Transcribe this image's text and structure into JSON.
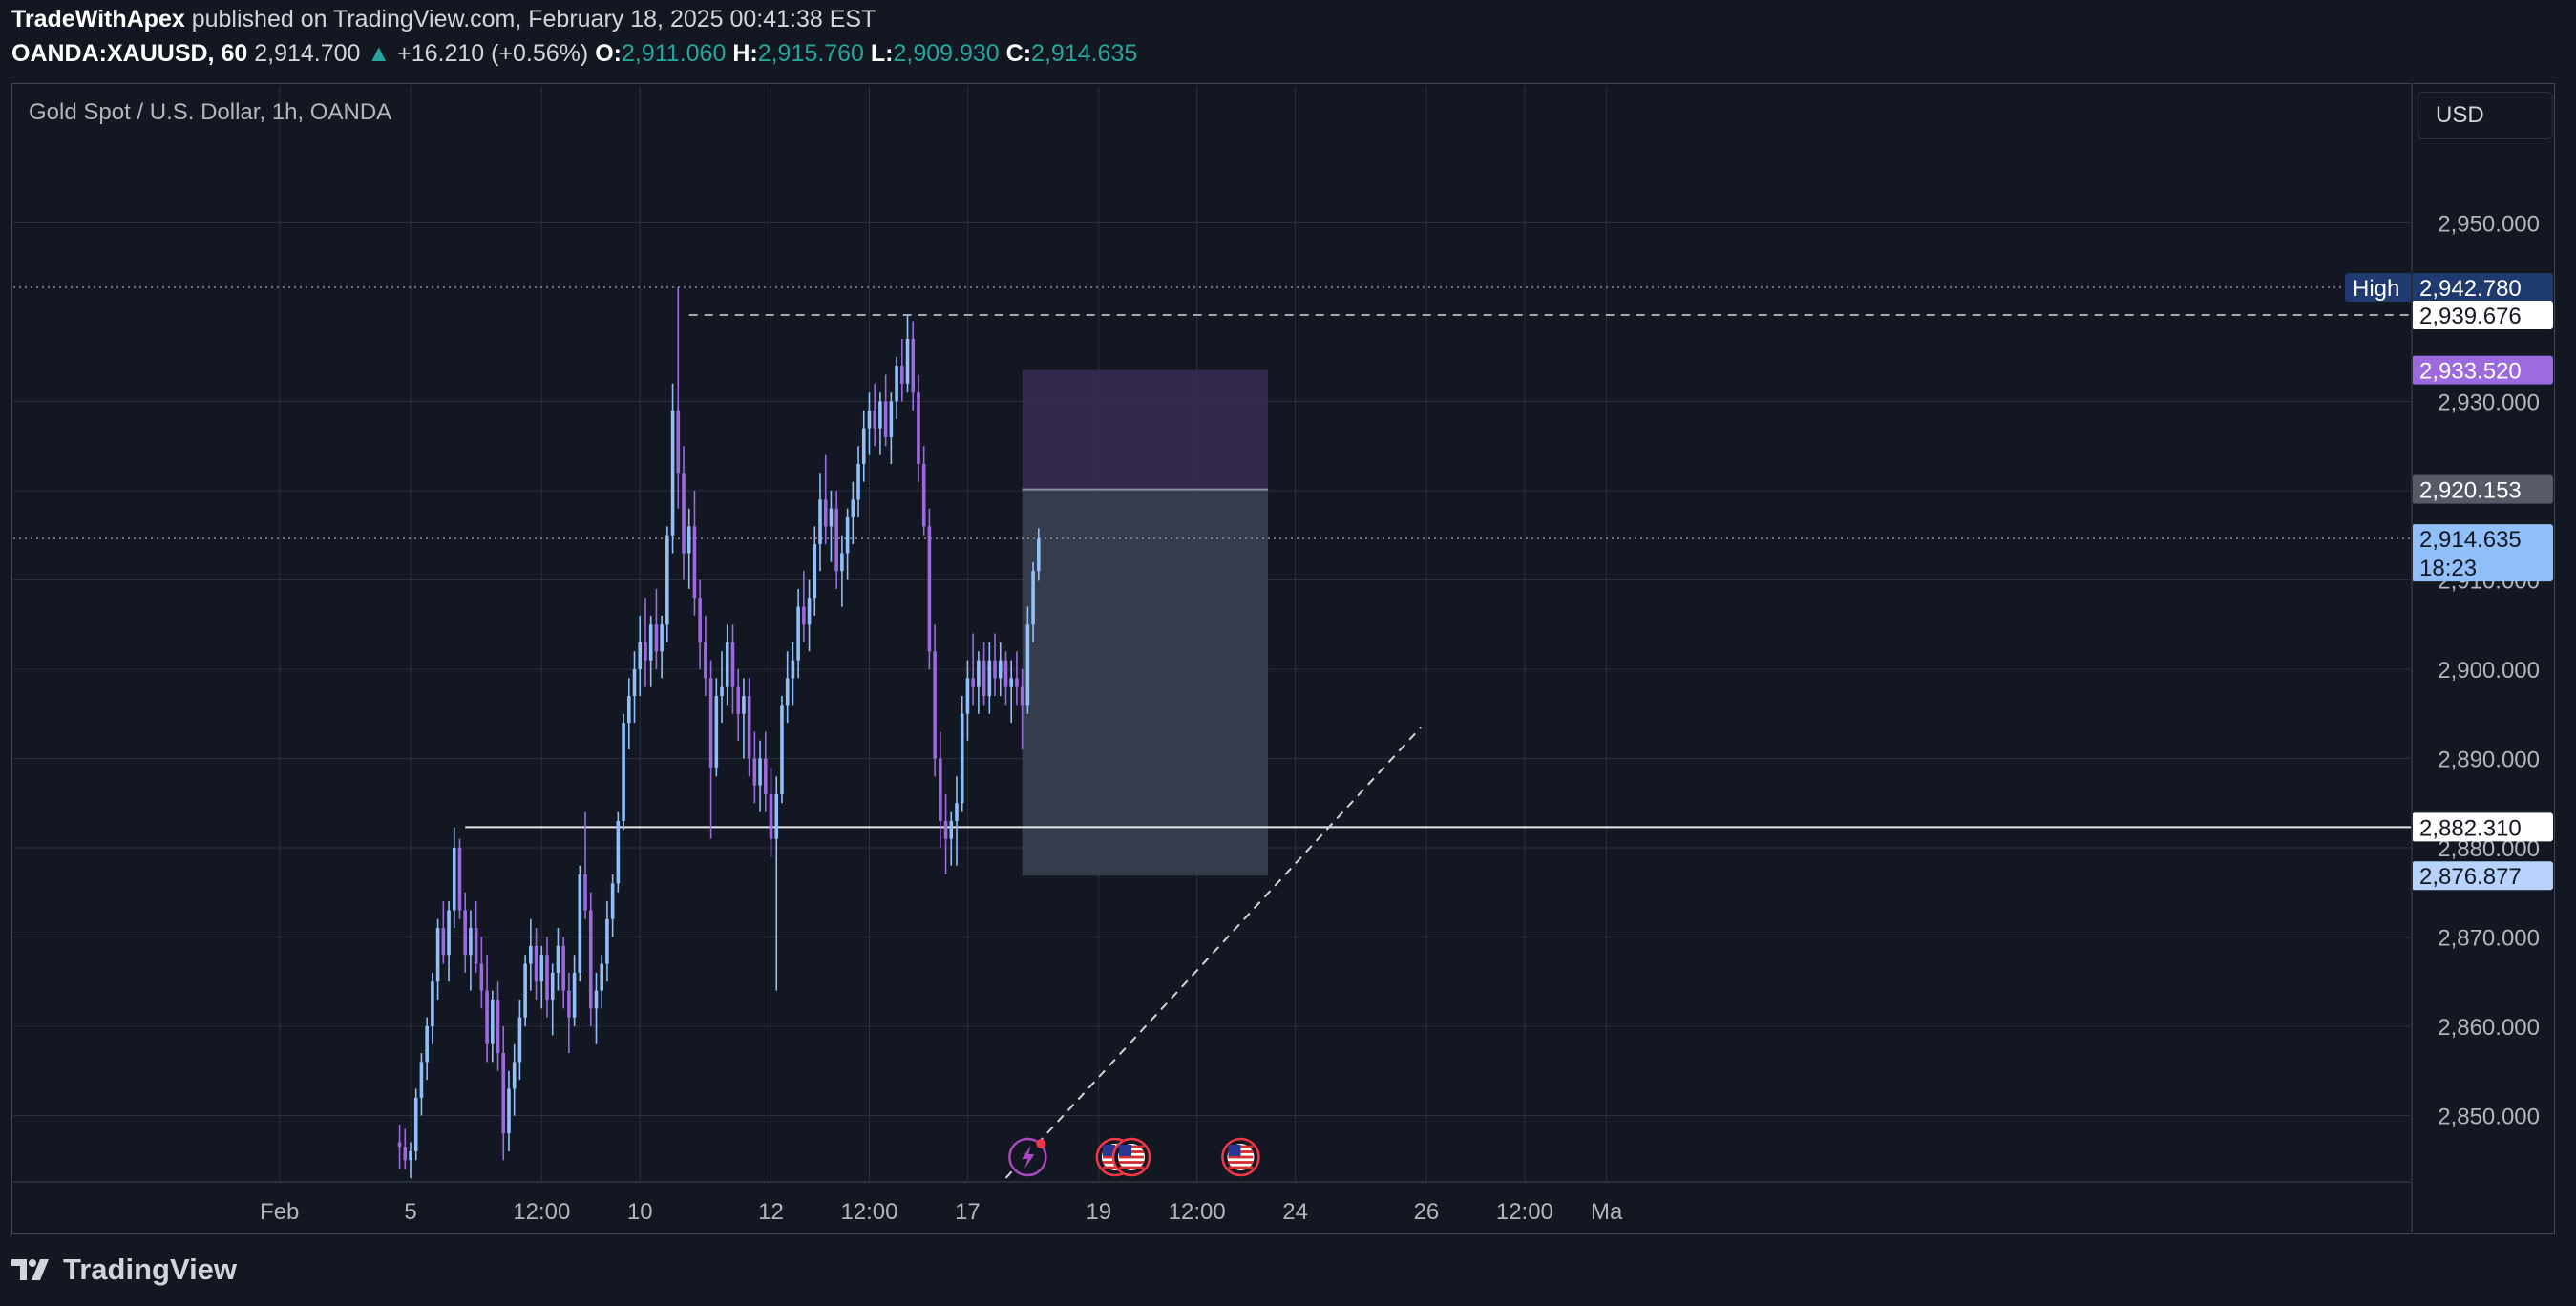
{
  "header": {
    "author": "TradeWithApex",
    "published": "published on TradingView.com, February 18, 2025 00:41:38 EST",
    "symbol": "OANDA:XAUUSD, 60",
    "last": "2,914.700",
    "change_arrow": "▲",
    "change": "+16.210 (+0.56%)",
    "open_label": "O:",
    "open": "2,911.060",
    "high_label": "H:",
    "high": "2,915.760",
    "low_label": "L:",
    "low": "2,909.930",
    "close_label": "C:",
    "close": "2,914.635"
  },
  "legend": "Gold Spot / U.S. Dollar, 1h, OANDA",
  "currency_button": "USD",
  "footer": {
    "brand": "TradingView",
    "logo_icon": "tradingview-logo-icon"
  },
  "colors": {
    "background": "#131722",
    "bull": "#90bff9",
    "bear": "#9c6ade",
    "grid": "#2a2e39",
    "high_label_bg": "#1e3a6e",
    "stop_zone": "#3b2c55",
    "target_zone": "#3c4454",
    "current_price_bg": "#90bff9",
    "entry_label_bg": "#555a66",
    "stop_label_bg": "#9c6ade"
  },
  "chart_data": {
    "type": "candlestick",
    "title": "Gold Spot / U.S. Dollar, 1h, OANDA",
    "ylim": [
      2843,
      2962
    ],
    "y_ticks": [
      {
        "value": 2850,
        "label": "2,850.000"
      },
      {
        "value": 2860,
        "label": "2,860.000"
      },
      {
        "value": 2870,
        "label": "2,870.000"
      },
      {
        "value": 2880,
        "label": "2,880.000"
      },
      {
        "value": 2890,
        "label": "2,890.000"
      },
      {
        "value": 2900,
        "label": "2,900.000"
      },
      {
        "value": 2910,
        "label": "2,910.000"
      },
      {
        "value": 2920,
        "label": "2,920.000"
      },
      {
        "value": 2930,
        "label": "2,930.000"
      },
      {
        "value": 2950,
        "label": "2,950.000"
      }
    ],
    "x_ticks": [
      {
        "bar": -24,
        "label": "Feb"
      },
      {
        "bar": 0,
        "label": "5"
      },
      {
        "bar": 24,
        "label": "12:00"
      },
      {
        "bar": 42,
        "label": "10"
      },
      {
        "bar": 66,
        "label": "12"
      },
      {
        "bar": 84,
        "label": "12:00"
      },
      {
        "bar": 102,
        "label": "17"
      },
      {
        "bar": 126,
        "label": "19"
      },
      {
        "bar": 144,
        "label": "12:00"
      },
      {
        "bar": 162,
        "label": "24"
      },
      {
        "bar": 186,
        "label": "26"
      },
      {
        "bar": 204,
        "label": "12:00"
      },
      {
        "bar": 219,
        "label": "Ma"
      }
    ],
    "candles": [
      [
        2847.0,
        2849.0,
        2844.0,
        2846.5
      ],
      [
        2846.5,
        2848.5,
        2844.0,
        2845.0
      ],
      [
        2845.0,
        2847.0,
        2843.0,
        2846.0
      ],
      [
        2846.0,
        2853.0,
        2845.0,
        2852.0
      ],
      [
        2852.0,
        2857.0,
        2850.0,
        2856.0
      ],
      [
        2856.0,
        2861.0,
        2854.0,
        2860.0
      ],
      [
        2860.0,
        2866.0,
        2858.0,
        2865.0
      ],
      [
        2865.0,
        2872.0,
        2863.0,
        2871.0
      ],
      [
        2871.0,
        2874.0,
        2867.0,
        2868.0
      ],
      [
        2868.0,
        2874.0,
        2865.0,
        2873.0
      ],
      [
        2873.0,
        2882.3,
        2871.0,
        2880.0
      ],
      [
        2880.0,
        2881.0,
        2872.0,
        2873.0
      ],
      [
        2873.0,
        2875.0,
        2866.0,
        2868.0
      ],
      [
        2868.0,
        2873.0,
        2864.0,
        2871.0
      ],
      [
        2871.0,
        2874.0,
        2866.0,
        2867.0
      ],
      [
        2867.0,
        2870.0,
        2862.0,
        2864.0
      ],
      [
        2864.0,
        2868.0,
        2856.0,
        2858.0
      ],
      [
        2858.0,
        2864.0,
        2856.0,
        2863.0
      ],
      [
        2863.0,
        2865.0,
        2855.0,
        2857.0
      ],
      [
        2857.0,
        2860.0,
        2845.0,
        2848.0
      ],
      [
        2848.0,
        2855.0,
        2846.0,
        2853.0
      ],
      [
        2853.0,
        2858.0,
        2850.0,
        2856.0
      ],
      [
        2856.0,
        2863.0,
        2854.0,
        2861.0
      ],
      [
        2861.0,
        2868.0,
        2860.0,
        2867.0
      ],
      [
        2867.0,
        2872.0,
        2864.0,
        2869.0
      ],
      [
        2869.0,
        2871.0,
        2863.0,
        2865.0
      ],
      [
        2865.0,
        2869.0,
        2862.0,
        2868.0
      ],
      [
        2868.0,
        2870.0,
        2861.0,
        2863.0
      ],
      [
        2863.0,
        2867.0,
        2859.0,
        2866.0
      ],
      [
        2866.0,
        2871.0,
        2864.0,
        2869.0
      ],
      [
        2869.0,
        2870.0,
        2862.0,
        2864.0
      ],
      [
        2864.0,
        2866.0,
        2857.0,
        2861.0
      ],
      [
        2861.0,
        2868.0,
        2860.0,
        2866.0
      ],
      [
        2866.0,
        2878.0,
        2865.0,
        2877.0
      ],
      [
        2877.0,
        2884.0,
        2872.0,
        2873.0
      ],
      [
        2873.0,
        2875.0,
        2860.0,
        2862.0
      ],
      [
        2862.0,
        2866.0,
        2858.0,
        2864.0
      ],
      [
        2864.0,
        2868.0,
        2862.0,
        2867.0
      ],
      [
        2867.0,
        2874.0,
        2865.0,
        2872.0
      ],
      [
        2872.0,
        2877.0,
        2870.0,
        2876.0
      ],
      [
        2876.0,
        2884.0,
        2875.0,
        2883.0
      ],
      [
        2883.0,
        2895.0,
        2882.0,
        2894.0
      ],
      [
        2894.0,
        2899.0,
        2891.0,
        2897.0
      ],
      [
        2897.0,
        2902.0,
        2894.0,
        2900.0
      ],
      [
        2900.0,
        2906.0,
        2897.0,
        2903.0
      ],
      [
        2903.0,
        2908.0,
        2898.0,
        2901.0
      ],
      [
        2901.0,
        2906.0,
        2898.0,
        2905.0
      ],
      [
        2905.0,
        2909.0,
        2900.0,
        2902.0
      ],
      [
        2902.0,
        2906.0,
        2899.0,
        2905.0
      ],
      [
        2905.0,
        2916.0,
        2903.0,
        2915.0
      ],
      [
        2915.0,
        2932.0,
        2913.0,
        2929.0
      ],
      [
        2929.0,
        2942.8,
        2918.0,
        2922.0
      ],
      [
        2922.0,
        2925.0,
        2910.0,
        2913.0
      ],
      [
        2913.0,
        2918.0,
        2909.0,
        2916.0
      ],
      [
        2916.0,
        2920.0,
        2906.0,
        2908.0
      ],
      [
        2908.0,
        2910.0,
        2900.0,
        2903.0
      ],
      [
        2903.0,
        2906.0,
        2897.0,
        2899.0
      ],
      [
        2899.0,
        2901.0,
        2881.0,
        2889.0
      ],
      [
        2889.0,
        2899.0,
        2888.0,
        2897.0
      ],
      [
        2897.0,
        2902.0,
        2894.0,
        2898.0
      ],
      [
        2898.0,
        2905.0,
        2896.0,
        2903.0
      ],
      [
        2903.0,
        2905.0,
        2895.0,
        2898.0
      ],
      [
        2898.0,
        2900.0,
        2892.0,
        2895.0
      ],
      [
        2895.0,
        2899.0,
        2890.0,
        2897.0
      ],
      [
        2897.0,
        2899.0,
        2888.0,
        2890.0
      ],
      [
        2890.0,
        2893.0,
        2885.0,
        2887.0
      ],
      [
        2887.0,
        2892.0,
        2884.0,
        2890.0
      ],
      [
        2890.0,
        2893.0,
        2884.0,
        2886.0
      ],
      [
        2886.0,
        2889.0,
        2879.0,
        2881.0
      ],
      [
        2881.0,
        2888.0,
        2864.0,
        2886.0
      ],
      [
        2886.0,
        2897.0,
        2885.0,
        2896.0
      ],
      [
        2896.0,
        2902.0,
        2894.0,
        2899.0
      ],
      [
        2899.0,
        2903.0,
        2896.0,
        2901.0
      ],
      [
        2901.0,
        2909.0,
        2899.0,
        2907.0
      ],
      [
        2907.0,
        2911.0,
        2903.0,
        2905.0
      ],
      [
        2905.0,
        2910.0,
        2902.0,
        2908.0
      ],
      [
        2908.0,
        2916.0,
        2906.0,
        2914.0
      ],
      [
        2914.0,
        2922.0,
        2911.0,
        2919.0
      ],
      [
        2919.0,
        2924.0,
        2914.0,
        2916.0
      ],
      [
        2916.0,
        2920.0,
        2912.0,
        2918.0
      ],
      [
        2918.0,
        2920.0,
        2909.0,
        2911.0
      ],
      [
        2911.0,
        2915.0,
        2907.0,
        2913.0
      ],
      [
        2913.0,
        2918.0,
        2910.0,
        2917.0
      ],
      [
        2917.0,
        2921.0,
        2914.0,
        2919.0
      ],
      [
        2919.0,
        2925.0,
        2917.0,
        2923.0
      ],
      [
        2923.0,
        2929.0,
        2921.0,
        2927.0
      ],
      [
        2927.0,
        2931.0,
        2924.0,
        2929.0
      ],
      [
        2929.0,
        2932.0,
        2925.0,
        2927.0
      ],
      [
        2927.0,
        2931.0,
        2924.0,
        2930.0
      ],
      [
        2930.0,
        2933.0,
        2925.0,
        2926.0
      ],
      [
        2926.0,
        2931.0,
        2923.0,
        2930.0
      ],
      [
        2930.0,
        2935.0,
        2928.0,
        2934.0
      ],
      [
        2934.0,
        2937.0,
        2930.0,
        2932.0
      ],
      [
        2932.0,
        2939.7,
        2931.0,
        2937.0
      ],
      [
        2937.0,
        2939.0,
        2929.0,
        2931.0
      ],
      [
        2931.0,
        2933.0,
        2921.0,
        2923.0
      ],
      [
        2923.0,
        2925.0,
        2915.0,
        2916.0
      ],
      [
        2916.0,
        2918.0,
        2900.0,
        2902.0
      ],
      [
        2902.0,
        2905.0,
        2888.0,
        2890.0
      ],
      [
        2890.0,
        2893.0,
        2880.0,
        2883.0
      ],
      [
        2883.0,
        2886.0,
        2877.0,
        2881.0
      ],
      [
        2881.0,
        2884.0,
        2878.0,
        2883.0
      ],
      [
        2883.0,
        2888.0,
        2878.0,
        2885.0
      ],
      [
        2885.0,
        2897.0,
        2884.0,
        2895.0
      ],
      [
        2895.0,
        2901.0,
        2892.0,
        2899.0
      ],
      [
        2899.0,
        2904.0,
        2896.0,
        2898.0
      ],
      [
        2898.0,
        2902.0,
        2895.0,
        2901.0
      ],
      [
        2901.0,
        2903.0,
        2896.0,
        2897.0
      ],
      [
        2897.0,
        2903.0,
        2895.0,
        2901.0
      ],
      [
        2901.0,
        2904.0,
        2897.0,
        2899.0
      ],
      [
        2899.0,
        2903.0,
        2897.0,
        2901.0
      ],
      [
        2901.0,
        2902.0,
        2896.0,
        2898.0
      ],
      [
        2898.0,
        2901.0,
        2894.0,
        2899.0
      ],
      [
        2899.0,
        2902.0,
        2896.0,
        2898.0
      ],
      [
        2898.0,
        2900.0,
        2891.0,
        2896.0
      ],
      [
        2896.0,
        2907.0,
        2895.0,
        2905.0
      ],
      [
        2905.0,
        2912.0,
        2903.0,
        2911.0
      ],
      [
        2911.0,
        2915.8,
        2909.9,
        2914.6
      ]
    ],
    "first_bar": -2,
    "price_labels": [
      {
        "name": "high-label",
        "tag": "High",
        "value": 2942.78,
        "label": "2,942.780"
      },
      {
        "name": "dashed-high-level-label",
        "value": 2939.676,
        "label": "2,939.676"
      },
      {
        "name": "stop-price-label",
        "value": 2933.52,
        "label": "2,933.520"
      },
      {
        "name": "entry-price-label",
        "value": 2920.153,
        "label": "2,920.153"
      },
      {
        "name": "current-price-label",
        "value": 2914.635,
        "label": "2,914.635",
        "sub": "18:23"
      },
      {
        "name": "support-level-label",
        "value": 2882.31,
        "label": "2,882.310"
      },
      {
        "name": "target-price-label",
        "value": 2876.877,
        "label": "2,876.877"
      }
    ],
    "levels": {
      "high_dotted": 2942.78,
      "current_dotted": 2914.635,
      "dashed_resistance": 2939.676,
      "support": 2882.31
    },
    "position": {
      "type": "short",
      "stop": 2933.52,
      "entry": 2920.153,
      "target": 2876.877,
      "start_bar": 112,
      "end_bar": 157
    },
    "trendline": {
      "start": [
        109,
        2843
      ],
      "end": [
        185,
        2893.5
      ]
    },
    "support_start_bar": 10,
    "resistance_start_bar": 51,
    "events": [
      {
        "bar": 113,
        "type": "flash",
        "icon": "lightning-icon"
      },
      {
        "bar": 129,
        "type": "us-economic-event",
        "icon": "us-flag-icon"
      },
      {
        "bar": 132,
        "type": "us-economic-event",
        "icon": "us-flag-icon"
      },
      {
        "bar": 152,
        "type": "us-economic-event",
        "icon": "us-flag-icon"
      }
    ]
  }
}
